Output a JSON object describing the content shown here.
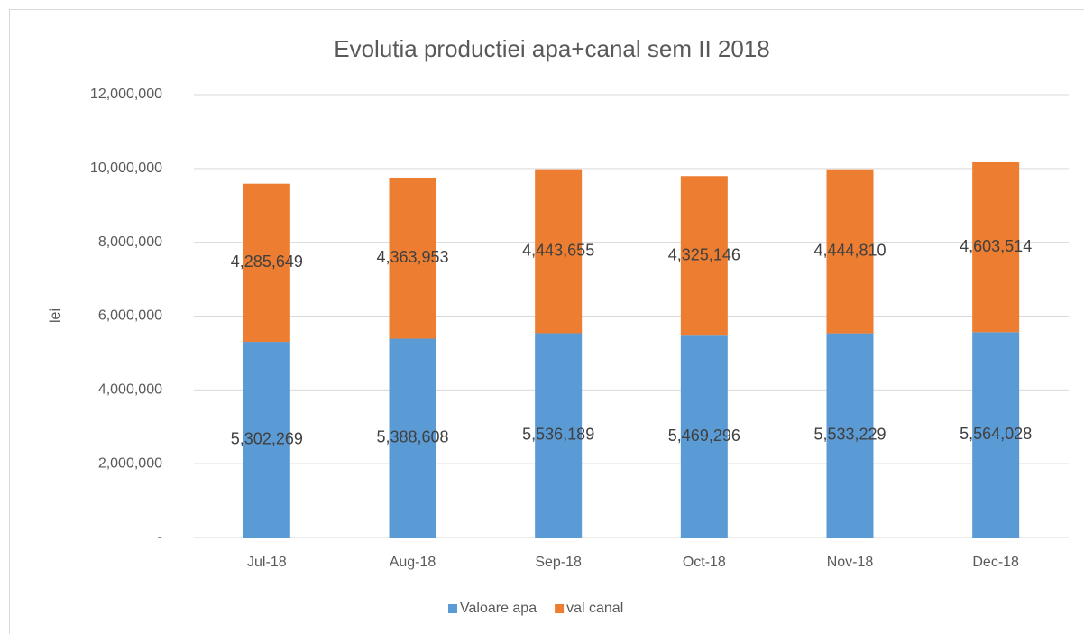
{
  "chart_data": {
    "type": "stacked_bar",
    "title": "Evolutia productiei apa+canal sem II 2018",
    "ylabel": "lei",
    "categories": [
      "Jul-18",
      "Aug-18",
      "Sep-18",
      "Oct-18",
      "Nov-18",
      "Dec-18"
    ],
    "series": [
      {
        "name": "Valoare apa",
        "color": "#5b9bd5",
        "values": [
          5302269,
          5388608,
          5536189,
          5469296,
          5533229,
          5564028
        ],
        "value_labels": [
          "5,302,269",
          "5,388,608",
          "5,536,189",
          "5,469,296",
          "5,533,229",
          "5,564,028"
        ]
      },
      {
        "name": "val canal",
        "color": "#ed7d31",
        "values": [
          4285649,
          4363953,
          4443655,
          4325146,
          4444810,
          4603514
        ],
        "value_labels": [
          "4,285,649",
          "4,363,953",
          "4,443,655",
          "4,325,146",
          "4,444,810",
          "4,603,514"
        ]
      }
    ],
    "ylim": [
      0,
      12000000
    ],
    "yticks": [
      {
        "value": 0,
        "label": "-"
      },
      {
        "value": 2000000,
        "label": "2,000,000"
      },
      {
        "value": 4000000,
        "label": "4,000,000"
      },
      {
        "value": 6000000,
        "label": "6,000,000"
      },
      {
        "value": 8000000,
        "label": "8,000,000"
      },
      {
        "value": 10000000,
        "label": "10,000,000"
      },
      {
        "value": 12000000,
        "label": "12,000,000"
      }
    ],
    "grid": true,
    "legend": "bottom"
  }
}
